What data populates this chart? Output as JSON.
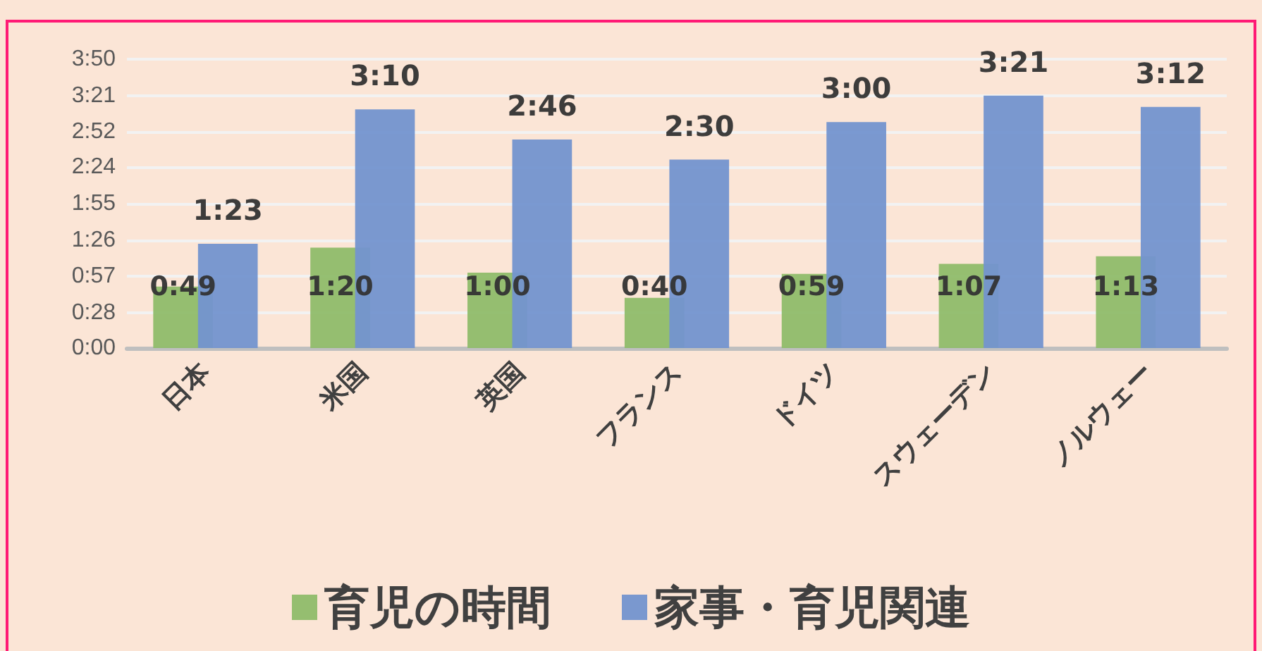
{
  "chart_data": {
    "type": "bar",
    "categories": [
      "日本",
      "米国",
      "英国",
      "フランス",
      "ドイツ",
      "スウェーデン",
      "ノルウェー"
    ],
    "series": [
      {
        "name": "育児の時間",
        "color": "#8fbc6a",
        "values": [
          49,
          80,
          60,
          40,
          59,
          67,
          73
        ],
        "value_labels": [
          "0:49",
          "1:20",
          "1:00",
          "0:40",
          "0:59",
          "1:07",
          "1:13"
        ]
      },
      {
        "name": "家事・育児関連",
        "color": "#7394cf",
        "values": [
          83,
          190,
          166,
          150,
          180,
          201,
          192
        ],
        "value_labels": [
          "1:23",
          "3:10",
          "2:46",
          "2:30",
          "3:00",
          "3:21",
          "3:12"
        ]
      }
    ],
    "ylim": [
      0,
      230
    ],
    "yticks": [
      {
        "value": 0,
        "label": "0:00"
      },
      {
        "value": 28,
        "label": "0:28"
      },
      {
        "value": 57,
        "label": "0:57"
      },
      {
        "value": 86,
        "label": "1:26"
      },
      {
        "value": 115,
        "label": "1:55"
      },
      {
        "value": 144,
        "label": "2:24"
      },
      {
        "value": 172,
        "label": "2:52"
      },
      {
        "value": 201,
        "label": "3:21"
      },
      {
        "value": 230,
        "label": "3:50"
      }
    ],
    "grid": "y",
    "legend": "bottom"
  }
}
